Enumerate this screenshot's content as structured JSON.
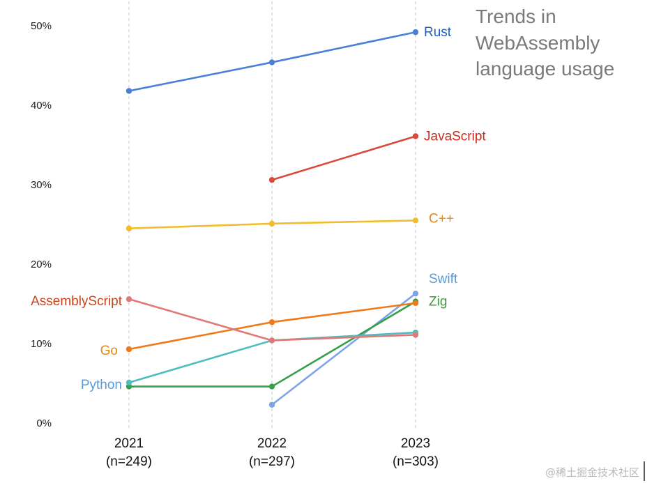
{
  "chart_data": {
    "type": "line",
    "title_lines": [
      "Trends in",
      "WebAssembly",
      "language usage"
    ],
    "categories": [
      {
        "year": "2021",
        "n": "(n=249)"
      },
      {
        "year": "2022",
        "n": "(n=297)"
      },
      {
        "year": "2023",
        "n": "(n=303)"
      }
    ],
    "yticks": [
      "0%",
      "10%",
      "20%",
      "30%",
      "40%",
      "50%"
    ],
    "ylim": [
      0,
      50
    ],
    "grid": "vertical dashed at each year",
    "series": [
      {
        "name": "Rust",
        "color": "#4a7fd8",
        "label_color": "#1f5fc4",
        "label_side": "end",
        "values": [
          41.8,
          45.4,
          49.2
        ]
      },
      {
        "name": "JavaScript",
        "color": "#d84a3a",
        "label_color": "#c62d1e",
        "label_side": "end",
        "values": [
          null,
          30.6,
          36.1
        ]
      },
      {
        "name": "C++",
        "color": "#f2bd2b",
        "label_color": "#e08a1c",
        "label_side": "end",
        "values": [
          24.5,
          25.1,
          25.5
        ]
      },
      {
        "name": "Swift",
        "color": "#7ea3e6",
        "label_color": "#5b9bd5",
        "label_side": "end",
        "values": [
          null,
          2.3,
          16.3
        ]
      },
      {
        "name": "Zig",
        "color": "#34a04a",
        "label_color": "#3f9a3a",
        "label_side": "end",
        "values": [
          4.6,
          4.6,
          15.3
        ]
      },
      {
        "name": "Python",
        "color": "#4fbcbf",
        "label_color": "#5b9bd5",
        "label_side": "start",
        "values": [
          5.1,
          10.4,
          11.4
        ]
      },
      {
        "name": "Go",
        "color": "#ef7a1c",
        "label_color": "#e08a1c",
        "label_side": "start",
        "values": [
          9.3,
          12.7,
          15.1
        ]
      },
      {
        "name": "AssemblyScript",
        "color": "#e07a78",
        "label_color": "#c9441b",
        "label_side": "start",
        "values": [
          15.6,
          10.4,
          11.1
        ]
      }
    ]
  },
  "watermark": "@稀土掘金技术社区"
}
